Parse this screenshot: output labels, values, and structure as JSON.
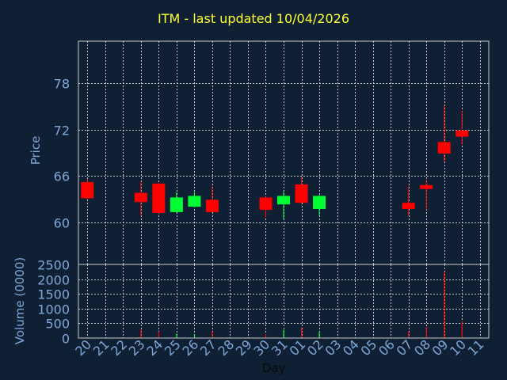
{
  "chart_data": {
    "type": "candlestick",
    "title": "ITM - last updated 10/04/2026",
    "xlabel": "Day",
    "categories": [
      "20",
      "21",
      "22",
      "23",
      "24",
      "25",
      "26",
      "27",
      "28",
      "29",
      "30",
      "31",
      "01",
      "02",
      "03",
      "04",
      "05",
      "06",
      "07",
      "08",
      "09",
      "10",
      "11"
    ],
    "price_panel": {
      "ylabel": "Price",
      "yticks": [
        60,
        66,
        72,
        78
      ],
      "ylim": [
        54.5,
        83.5
      ],
      "candles": [
        {
          "day": "20",
          "open": 65.2,
          "close": 63.1,
          "high": 65.6,
          "low": 62.9
        },
        {
          "day": "23",
          "open": 63.8,
          "close": 62.6,
          "high": 65.3,
          "low": 60.8
        },
        {
          "day": "24",
          "open": 65.0,
          "close": 61.2,
          "high": 65.1,
          "low": 61.0
        },
        {
          "day": "25",
          "open": 61.3,
          "close": 63.2,
          "high": 63.9,
          "low": 61.2
        },
        {
          "day": "26",
          "open": 62.0,
          "close": 63.4,
          "high": 63.9,
          "low": 61.9
        },
        {
          "day": "27",
          "open": 62.9,
          "close": 61.3,
          "high": 64.7,
          "low": 61.2
        },
        {
          "day": "30",
          "open": 63.2,
          "close": 61.6,
          "high": 63.3,
          "low": 60.6
        },
        {
          "day": "31",
          "open": 62.3,
          "close": 63.4,
          "high": 64.0,
          "low": 60.4
        },
        {
          "day": "01",
          "open": 64.9,
          "close": 62.5,
          "high": 65.9,
          "low": 62.4
        },
        {
          "day": "02",
          "open": 61.7,
          "close": 63.4,
          "high": 63.5,
          "low": 60.8
        },
        {
          "day": "07",
          "open": 62.5,
          "close": 61.7,
          "high": 64.7,
          "low": 60.8
        },
        {
          "day": "08",
          "open": 64.8,
          "close": 64.3,
          "high": 65.5,
          "low": 61.6
        },
        {
          "day": "09",
          "open": 70.4,
          "close": 68.9,
          "high": 75.1,
          "low": 67.8
        },
        {
          "day": "10",
          "open": 71.9,
          "close": 71.1,
          "high": 74.5,
          "low": 70.1
        }
      ]
    },
    "volume_panel": {
      "ylabel": "Volume (0000)",
      "yticks": [
        0,
        500,
        1000,
        1500,
        2000,
        2500
      ],
      "ylim": [
        0,
        2500
      ],
      "bars": [
        {
          "day": "23",
          "value": 300,
          "direction": "down"
        },
        {
          "day": "24",
          "value": 220,
          "direction": "down"
        },
        {
          "day": "25",
          "value": 150,
          "direction": "up"
        },
        {
          "day": "26",
          "value": 140,
          "direction": "up"
        },
        {
          "day": "27",
          "value": 220,
          "direction": "down"
        },
        {
          "day": "30",
          "value": 140,
          "direction": "down"
        },
        {
          "day": "31",
          "value": 280,
          "direction": "up"
        },
        {
          "day": "01",
          "value": 360,
          "direction": "down"
        },
        {
          "day": "02",
          "value": 220,
          "direction": "up"
        },
        {
          "day": "07",
          "value": 230,
          "direction": "down"
        },
        {
          "day": "08",
          "value": 380,
          "direction": "down"
        },
        {
          "day": "09",
          "value": 2250,
          "direction": "down"
        },
        {
          "day": "10",
          "value": 570,
          "direction": "down"
        }
      ]
    },
    "colors": {
      "background": "#0f2035",
      "grid": "#c8c8c8",
      "axis_text": "#7fa7d6",
      "title": "#ffff33",
      "up": "#00ff33",
      "down": "#ff0000",
      "xlabel": "#0a0a0a"
    },
    "grid": true
  }
}
